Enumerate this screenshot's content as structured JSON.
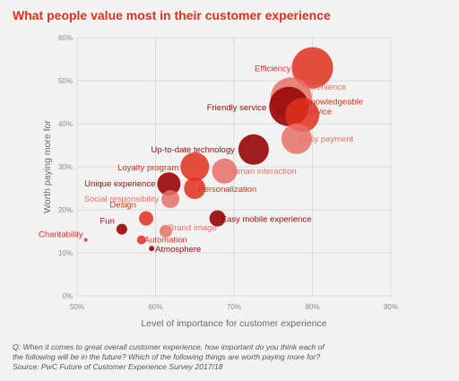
{
  "title": "What people value most in their customer experience",
  "note": [
    "Q: When it comes to great overall customer experience, how important do you think each of",
    "the following will be in the future? Which of the following things are worth paying more for?",
    "Source: PwC Future of Customer Experience Survey 2017/18"
  ],
  "colors": {
    "dark": "#9a0a0a",
    "red": "#e0301e",
    "light": "#e8706a",
    "title": "#e0301e"
  },
  "chart_data": {
    "type": "scatter",
    "title": "What people value most in their customer experience",
    "xlabel": "Level of importance for customer experience",
    "ylabel": "Worth paying more for",
    "xlim": [
      50,
      90
    ],
    "ylim": [
      0,
      60
    ],
    "xticks": [
      "50%",
      "60%",
      "70%",
      "80%",
      "90%"
    ],
    "yticks": [
      "0%",
      "10%",
      "20%",
      "30%",
      "40%",
      "50%",
      "60%"
    ],
    "grid": true,
    "points": [
      {
        "label": "Efficiency",
        "x": 80.0,
        "y": 53,
        "size": 23,
        "color": "red"
      },
      {
        "label": "Convenience",
        "x": 77.3,
        "y": 46,
        "size": 23,
        "color": "light"
      },
      {
        "label": "Friendly service",
        "x": 77.0,
        "y": 44,
        "size": 22,
        "color": "dark"
      },
      {
        "label": "Knowledgeable\nservice",
        "x": 78.7,
        "y": 42,
        "size": 19,
        "color": "red"
      },
      {
        "label": "Easy payment",
        "x": 78.0,
        "y": 36.5,
        "size": 17,
        "color": "light"
      },
      {
        "label": "Up-to-date technology",
        "x": 72.5,
        "y": 34,
        "size": 17,
        "color": "dark"
      },
      {
        "label": "Human interaction",
        "x": 68.8,
        "y": 29,
        "size": 14,
        "color": "light"
      },
      {
        "label": "Loyalty program",
        "x": 65.0,
        "y": 30,
        "size": 16,
        "color": "red"
      },
      {
        "label": "Unique experience",
        "x": 61.7,
        "y": 26,
        "size": 13,
        "color": "dark"
      },
      {
        "label": "Personalization",
        "x": 65.0,
        "y": 25,
        "size": 12,
        "color": "red"
      },
      {
        "label": "Social responsibility",
        "x": 61.9,
        "y": 22.5,
        "size": 10,
        "color": "light"
      },
      {
        "label": "Design",
        "x": 58.8,
        "y": 18,
        "size": 8,
        "color": "red"
      },
      {
        "label": "Easy mobile experience",
        "x": 67.9,
        "y": 18,
        "size": 9,
        "color": "dark"
      },
      {
        "label": "Fun",
        "x": 55.7,
        "y": 15.5,
        "size": 6,
        "color": "dark"
      },
      {
        "label": "Brand image",
        "x": 61.3,
        "y": 15,
        "size": 7,
        "color": "light"
      },
      {
        "label": "Charitability",
        "x": 51.1,
        "y": 13,
        "size": 2,
        "color": "red"
      },
      {
        "label": "Automation",
        "x": 58.2,
        "y": 13,
        "size": 5,
        "color": "red"
      },
      {
        "label": "Atmosphere",
        "x": 59.5,
        "y": 11,
        "size": 3,
        "color": "dark"
      }
    ]
  }
}
